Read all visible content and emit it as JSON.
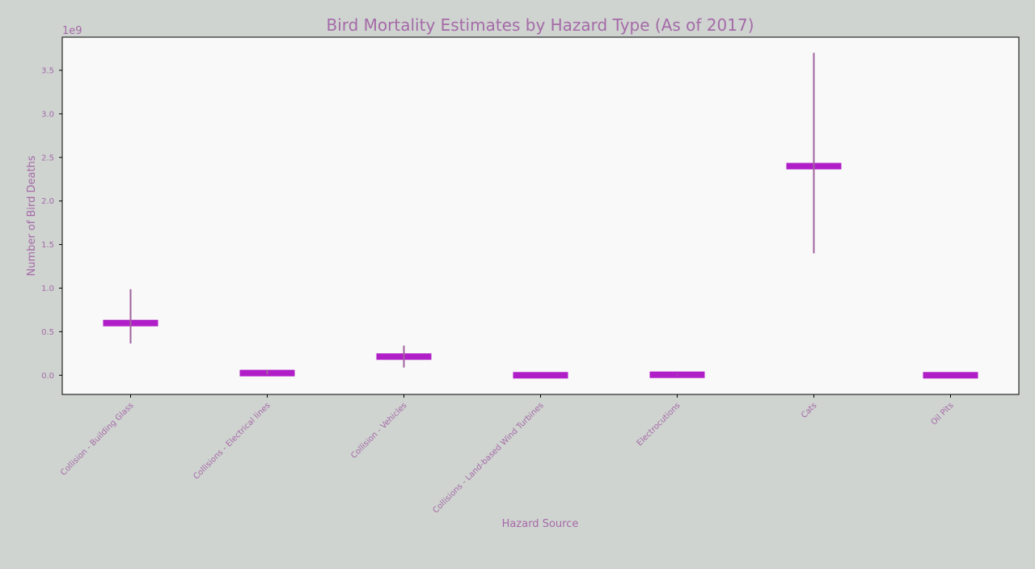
{
  "chart_data": {
    "type": "bar",
    "title": "Bird Mortality Estimates by Hazard Type (As of 2017)",
    "xlabel": "Hazard Source",
    "ylabel": "Number of Bird Deaths",
    "y_scale_note": "1e9",
    "ylim": [
      -0.22,
      3.88
    ],
    "yticks": [
      "0.0",
      "0.5",
      "1.0",
      "1.5",
      "2.0",
      "2.5",
      "3.0",
      "3.5"
    ],
    "ytick_values": [
      0.0,
      0.5,
      1.0,
      1.5,
      2.0,
      2.5,
      3.0,
      3.5
    ],
    "grid": false,
    "categories": [
      "Collision - Building Glass",
      "Collisions - Electrical lines",
      "Collision - Vehicles",
      "Collisions - Land-based Wind Turbines",
      "Electrocutions",
      "Cats",
      "Oil Pits"
    ],
    "values": [
      0.599,
      0.025,
      0.214,
      0.0,
      0.0056,
      2.4,
      0.0
    ],
    "low": [
      0.365,
      0.012,
      0.089,
      0.0,
      0.0009,
      1.4,
      0.0
    ],
    "high": [
      0.988,
      0.064,
      0.34,
      0.0,
      0.0116,
      3.7,
      0.0
    ],
    "colors": {
      "bar": "#b01ec8",
      "error": "#a0629e",
      "text": "#a56aa8",
      "plot_bg": "#f9f9f9",
      "page_bg": "#cfd4d0",
      "frame": "#000000"
    }
  }
}
